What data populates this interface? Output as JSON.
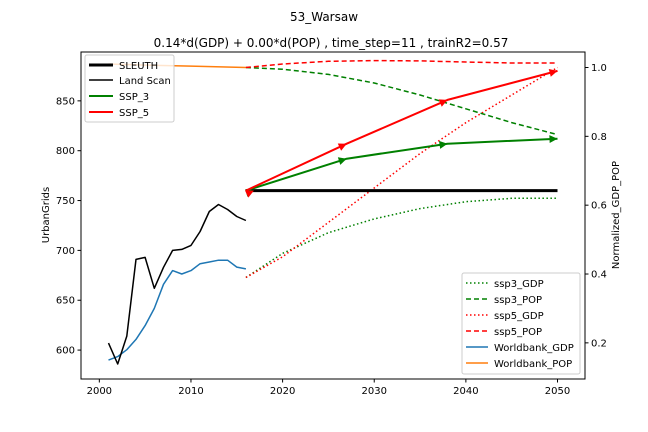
{
  "chart_data": {
    "type": "line",
    "title": "53_Warsaw",
    "subtitle": "0.14*d(GDP) + 0.00*d(POP) , time_step=11 , trainR2=0.57",
    "xlabel": "",
    "ylabel_left": "UrbanGrids",
    "ylabel_right": "Normalized_GDP_POP",
    "xlim": [
      1998,
      2053
    ],
    "ylim_left": [
      571,
      899
    ],
    "ylim_right": [
      0.095,
      1.045
    ],
    "x_ticks": [
      2000,
      2010,
      2020,
      2030,
      2040,
      2050
    ],
    "y_ticks_left": [
      600,
      650,
      700,
      750,
      800,
      850
    ],
    "y_ticks_right": [
      0.2,
      0.4,
      0.6,
      0.8,
      1.0
    ],
    "legend_left": [
      "SLEUTH",
      "Land Scan",
      "SSP_3",
      "SSP_5"
    ],
    "legend_right": [
      "ssp3_GDP",
      "ssp3_POP",
      "ssp5_GDP",
      "ssp5_POP",
      "Worldbank_GDP",
      "Worldbank_POP"
    ],
    "series": [
      {
        "name": "SLEUTH",
        "axis": "left",
        "color": "#000000",
        "style": "solid-thick",
        "x": [
          2016,
          2050
        ],
        "y": [
          760,
          760
        ]
      },
      {
        "name": "Land Scan",
        "axis": "left",
        "color": "#000000",
        "style": "solid",
        "x": [
          2001,
          2002,
          2003,
          2004,
          2005,
          2006,
          2007,
          2008,
          2009,
          2010,
          2011,
          2012,
          2013,
          2014,
          2015,
          2016
        ],
        "y": [
          607,
          586,
          614,
          691,
          693,
          662,
          683,
          700,
          701,
          705,
          719,
          739,
          746,
          741,
          734,
          730
        ]
      },
      {
        "name": "SSP_3",
        "axis": "left",
        "color": "#008000",
        "style": "solid-arrow",
        "x": [
          2016,
          2027,
          2038,
          2050
        ],
        "y": [
          760,
          792,
          807,
          812
        ]
      },
      {
        "name": "SSP_5",
        "axis": "left",
        "color": "#ff0000",
        "style": "solid-arrow",
        "x": [
          2016,
          2027,
          2038,
          2050
        ],
        "y": [
          760,
          807,
          851,
          880
        ]
      },
      {
        "name": "ssp3_GDP",
        "axis": "right",
        "color": "#008000",
        "style": "dotted",
        "x": [
          2016,
          2020,
          2025,
          2030,
          2035,
          2040,
          2045,
          2050
        ],
        "y": [
          0.39,
          0.46,
          0.52,
          0.56,
          0.59,
          0.61,
          0.62,
          0.62
        ]
      },
      {
        "name": "ssp3_POP",
        "axis": "right",
        "color": "#008000",
        "style": "dashed",
        "x": [
          2016,
          2020,
          2025,
          2030,
          2035,
          2040,
          2045,
          2050
        ],
        "y": [
          1.0,
          0.995,
          0.98,
          0.955,
          0.92,
          0.88,
          0.84,
          0.805
        ]
      },
      {
        "name": "ssp5_GDP",
        "axis": "right",
        "color": "#ff0000",
        "style": "dotted",
        "x": [
          2016,
          2020,
          2025,
          2030,
          2035,
          2040,
          2045,
          2050
        ],
        "y": [
          0.39,
          0.45,
          0.55,
          0.65,
          0.75,
          0.84,
          0.92,
          1.0
        ]
      },
      {
        "name": "ssp5_POP",
        "axis": "right",
        "color": "#ff0000",
        "style": "dashed",
        "x": [
          2016,
          2020,
          2025,
          2030,
          2035,
          2040,
          2045,
          2050
        ],
        "y": [
          1.0,
          1.01,
          1.018,
          1.02,
          1.019,
          1.016,
          1.013,
          1.013
        ]
      },
      {
        "name": "Worldbank_GDP",
        "axis": "right",
        "color": "#1f77b4",
        "style": "solid",
        "x": [
          2001,
          2002,
          2003,
          2004,
          2005,
          2006,
          2007,
          2008,
          2009,
          2010,
          2011,
          2012,
          2013,
          2014,
          2015,
          2016
        ],
        "y": [
          0.15,
          0.16,
          0.18,
          0.21,
          0.25,
          0.3,
          0.37,
          0.41,
          0.4,
          0.41,
          0.43,
          0.435,
          0.44,
          0.44,
          0.42,
          0.415
        ]
      },
      {
        "name": "Worldbank_POP",
        "axis": "right",
        "color": "#ff7f0e",
        "style": "solid",
        "x": [
          2001,
          2005,
          2010,
          2016
        ],
        "y": [
          1.01,
          1.007,
          1.004,
          1.0
        ]
      }
    ]
  }
}
